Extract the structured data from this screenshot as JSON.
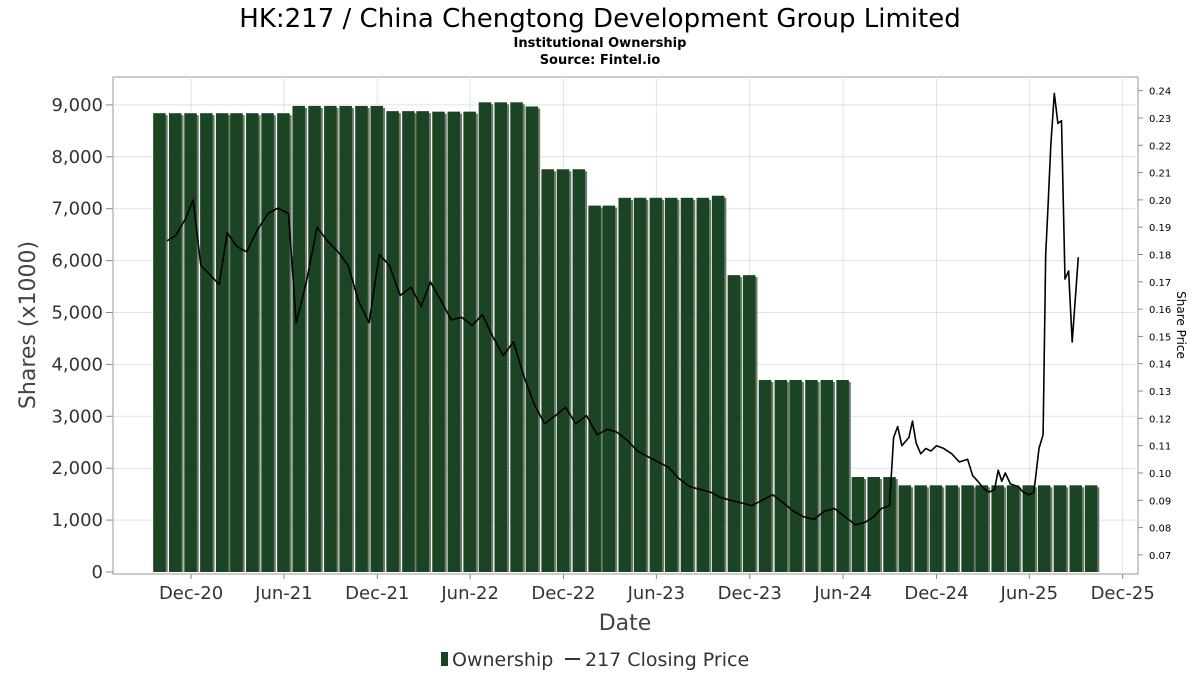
{
  "chart_data": {
    "type": "bar",
    "title": "HK:217 / China Chengtong Development Group Limited",
    "subtitle": "Institutional Ownership",
    "source": "Source: Fintel.io",
    "xlabel": "Date",
    "ylabel": "Shares (x1000)",
    "y2label": "Share Price",
    "ylim": [
      0,
      9500
    ],
    "y2lim": [
      0.063,
      0.245
    ],
    "y_ticks": [
      "0",
      "1,000",
      "2,000",
      "3,000",
      "4,000",
      "5,000",
      "6,000",
      "7,000",
      "8,000",
      "9,000"
    ],
    "y2_ticks": [
      "0.07",
      "0.08",
      "0.09",
      "0.10",
      "0.11",
      "0.12",
      "0.13",
      "0.14",
      "0.15",
      "0.16",
      "0.17",
      "0.18",
      "0.19",
      "0.20",
      "0.21",
      "0.22",
      "0.23",
      "0.24"
    ],
    "x_ticks": [
      "Dec-20",
      "Jun-21",
      "Dec-21",
      "Jun-22",
      "Dec-22",
      "Jun-23",
      "Dec-23",
      "Jun-24",
      "Dec-24",
      "Jun-25",
      "Dec-25"
    ],
    "x_range": [
      "2020-07-01",
      "2025-12-31"
    ],
    "grid": true,
    "legend_position": "bottom",
    "legend": {
      "ownership": "Ownership",
      "price": "217 Closing Price"
    },
    "series": [
      {
        "name": "Ownership",
        "color": "#1b4423",
        "shadow_color": "#6f7a6f",
        "values": [
          {
            "d": "2020-09-30",
            "v": 8840
          },
          {
            "d": "2020-10-31",
            "v": 8840
          },
          {
            "d": "2020-11-30",
            "v": 8840
          },
          {
            "d": "2020-12-31",
            "v": 8840
          },
          {
            "d": "2021-01-31",
            "v": 8840
          },
          {
            "d": "2021-02-28",
            "v": 8840
          },
          {
            "d": "2021-03-31",
            "v": 8840
          },
          {
            "d": "2021-04-30",
            "v": 8840
          },
          {
            "d": "2021-05-31",
            "v": 8840
          },
          {
            "d": "2021-06-30",
            "v": 8980
          },
          {
            "d": "2021-07-31",
            "v": 8980
          },
          {
            "d": "2021-08-31",
            "v": 8980
          },
          {
            "d": "2021-09-30",
            "v": 8980
          },
          {
            "d": "2021-10-31",
            "v": 8980
          },
          {
            "d": "2021-11-30",
            "v": 8980
          },
          {
            "d": "2021-12-31",
            "v": 8880
          },
          {
            "d": "2022-01-31",
            "v": 8880
          },
          {
            "d": "2022-02-28",
            "v": 8880
          },
          {
            "d": "2022-03-31",
            "v": 8870
          },
          {
            "d": "2022-04-30",
            "v": 8870
          },
          {
            "d": "2022-05-31",
            "v": 8870
          },
          {
            "d": "2022-06-30",
            "v": 9050
          },
          {
            "d": "2022-07-31",
            "v": 9050
          },
          {
            "d": "2022-08-31",
            "v": 9050
          },
          {
            "d": "2022-09-30",
            "v": 8970
          },
          {
            "d": "2022-10-31",
            "v": 7760
          },
          {
            "d": "2022-11-30",
            "v": 7760
          },
          {
            "d": "2022-12-31",
            "v": 7760
          },
          {
            "d": "2023-01-31",
            "v": 7060
          },
          {
            "d": "2023-02-28",
            "v": 7060
          },
          {
            "d": "2023-03-31",
            "v": 7210
          },
          {
            "d": "2023-04-30",
            "v": 7210
          },
          {
            "d": "2023-05-31",
            "v": 7210
          },
          {
            "d": "2023-06-30",
            "v": 7210
          },
          {
            "d": "2023-07-31",
            "v": 7210
          },
          {
            "d": "2023-08-31",
            "v": 7210
          },
          {
            "d": "2023-09-30",
            "v": 7250
          },
          {
            "d": "2023-10-31",
            "v": 5720
          },
          {
            "d": "2023-11-30",
            "v": 5720
          },
          {
            "d": "2023-12-31",
            "v": 3700
          },
          {
            "d": "2024-01-31",
            "v": 3700
          },
          {
            "d": "2024-02-29",
            "v": 3700
          },
          {
            "d": "2024-03-31",
            "v": 3700
          },
          {
            "d": "2024-04-30",
            "v": 3700
          },
          {
            "d": "2024-05-31",
            "v": 3700
          },
          {
            "d": "2024-06-30",
            "v": 1830
          },
          {
            "d": "2024-07-31",
            "v": 1830
          },
          {
            "d": "2024-08-31",
            "v": 1830
          },
          {
            "d": "2024-09-30",
            "v": 1670
          },
          {
            "d": "2024-10-31",
            "v": 1670
          },
          {
            "d": "2024-11-30",
            "v": 1670
          },
          {
            "d": "2024-12-31",
            "v": 1670
          },
          {
            "d": "2025-01-31",
            "v": 1670
          },
          {
            "d": "2025-02-28",
            "v": 1670
          },
          {
            "d": "2025-03-31",
            "v": 1670
          },
          {
            "d": "2025-04-30",
            "v": 1670
          },
          {
            "d": "2025-05-31",
            "v": 1670
          },
          {
            "d": "2025-06-30",
            "v": 1670
          },
          {
            "d": "2025-07-31",
            "v": 1670
          },
          {
            "d": "2025-08-31",
            "v": 1670
          },
          {
            "d": "2025-09-30",
            "v": 1670
          }
        ]
      },
      {
        "name": "217 Closing Price",
        "color": "#000000",
        "axis": "right",
        "values": [
          {
            "d": "2020-10-15",
            "v": 0.185
          },
          {
            "d": "2020-11-01",
            "v": 0.187
          },
          {
            "d": "2020-11-20",
            "v": 0.193
          },
          {
            "d": "2020-12-05",
            "v": 0.2
          },
          {
            "d": "2020-12-20",
            "v": 0.176
          },
          {
            "d": "2021-01-05",
            "v": 0.173
          },
          {
            "d": "2021-01-25",
            "v": 0.169
          },
          {
            "d": "2021-02-10",
            "v": 0.188
          },
          {
            "d": "2021-02-28",
            "v": 0.183
          },
          {
            "d": "2021-03-20",
            "v": 0.181
          },
          {
            "d": "2021-04-10",
            "v": 0.189
          },
          {
            "d": "2021-05-01",
            "v": 0.195
          },
          {
            "d": "2021-05-20",
            "v": 0.197
          },
          {
            "d": "2021-06-10",
            "v": 0.195
          },
          {
            "d": "2021-06-25",
            "v": 0.155
          },
          {
            "d": "2021-07-15",
            "v": 0.17
          },
          {
            "d": "2021-08-05",
            "v": 0.19
          },
          {
            "d": "2021-08-25",
            "v": 0.185
          },
          {
            "d": "2021-09-15",
            "v": 0.181
          },
          {
            "d": "2021-10-05",
            "v": 0.176
          },
          {
            "d": "2021-10-25",
            "v": 0.163
          },
          {
            "d": "2021-11-15",
            "v": 0.155
          },
          {
            "d": "2021-12-05",
            "v": 0.18
          },
          {
            "d": "2021-12-25",
            "v": 0.176
          },
          {
            "d": "2022-01-15",
            "v": 0.165
          },
          {
            "d": "2022-02-05",
            "v": 0.168
          },
          {
            "d": "2022-02-25",
            "v": 0.161
          },
          {
            "d": "2022-03-15",
            "v": 0.17
          },
          {
            "d": "2022-04-05",
            "v": 0.163
          },
          {
            "d": "2022-04-25",
            "v": 0.156
          },
          {
            "d": "2022-05-15",
            "v": 0.157
          },
          {
            "d": "2022-06-05",
            "v": 0.154
          },
          {
            "d": "2022-06-25",
            "v": 0.158
          },
          {
            "d": "2022-07-15",
            "v": 0.15
          },
          {
            "d": "2022-08-05",
            "v": 0.143
          },
          {
            "d": "2022-08-25",
            "v": 0.148
          },
          {
            "d": "2022-09-15",
            "v": 0.135
          },
          {
            "d": "2022-10-05",
            "v": 0.125
          },
          {
            "d": "2022-10-25",
            "v": 0.118
          },
          {
            "d": "2022-11-15",
            "v": 0.121
          },
          {
            "d": "2022-12-05",
            "v": 0.124
          },
          {
            "d": "2022-12-25",
            "v": 0.118
          },
          {
            "d": "2023-01-15",
            "v": 0.121
          },
          {
            "d": "2023-02-05",
            "v": 0.114
          },
          {
            "d": "2023-02-25",
            "v": 0.116
          },
          {
            "d": "2023-03-15",
            "v": 0.115
          },
          {
            "d": "2023-04-05",
            "v": 0.112
          },
          {
            "d": "2023-04-25",
            "v": 0.108
          },
          {
            "d": "2023-05-15",
            "v": 0.106
          },
          {
            "d": "2023-06-05",
            "v": 0.104
          },
          {
            "d": "2023-06-25",
            "v": 0.102
          },
          {
            "d": "2023-07-15",
            "v": 0.098
          },
          {
            "d": "2023-08-05",
            "v": 0.095
          },
          {
            "d": "2023-08-25",
            "v": 0.094
          },
          {
            "d": "2023-09-15",
            "v": 0.093
          },
          {
            "d": "2023-10-05",
            "v": 0.091
          },
          {
            "d": "2023-10-25",
            "v": 0.09
          },
          {
            "d": "2023-11-15",
            "v": 0.089
          },
          {
            "d": "2023-12-05",
            "v": 0.088
          },
          {
            "d": "2023-12-25",
            "v": 0.09
          },
          {
            "d": "2024-01-15",
            "v": 0.092
          },
          {
            "d": "2024-02-05",
            "v": 0.089
          },
          {
            "d": "2024-02-25",
            "v": 0.086
          },
          {
            "d": "2024-03-15",
            "v": 0.084
          },
          {
            "d": "2024-04-05",
            "v": 0.083
          },
          {
            "d": "2024-04-25",
            "v": 0.086
          },
          {
            "d": "2024-05-15",
            "v": 0.087
          },
          {
            "d": "2024-06-05",
            "v": 0.084
          },
          {
            "d": "2024-06-25",
            "v": 0.081
          },
          {
            "d": "2024-07-15",
            "v": 0.082
          },
          {
            "d": "2024-07-31",
            "v": 0.084
          },
          {
            "d": "2024-08-15",
            "v": 0.087
          },
          {
            "d": "2024-08-31",
            "v": 0.088
          },
          {
            "d": "2024-09-08",
            "v": 0.113
          },
          {
            "d": "2024-09-16",
            "v": 0.117
          },
          {
            "d": "2024-09-24",
            "v": 0.11
          },
          {
            "d": "2024-10-08",
            "v": 0.113
          },
          {
            "d": "2024-10-15",
            "v": 0.119
          },
          {
            "d": "2024-10-22",
            "v": 0.111
          },
          {
            "d": "2024-10-31",
            "v": 0.107
          },
          {
            "d": "2024-11-10",
            "v": 0.109
          },
          {
            "d": "2024-11-20",
            "v": 0.108
          },
          {
            "d": "2024-12-01",
            "v": 0.11
          },
          {
            "d": "2024-12-15",
            "v": 0.109
          },
          {
            "d": "2024-12-31",
            "v": 0.107
          },
          {
            "d": "2025-01-15",
            "v": 0.104
          },
          {
            "d": "2025-01-31",
            "v": 0.105
          },
          {
            "d": "2025-02-10",
            "v": 0.099
          },
          {
            "d": "2025-02-20",
            "v": 0.097
          },
          {
            "d": "2025-03-05",
            "v": 0.094
          },
          {
            "d": "2025-03-15",
            "v": 0.093
          },
          {
            "d": "2025-03-25",
            "v": 0.094
          },
          {
            "d": "2025-04-01",
            "v": 0.101
          },
          {
            "d": "2025-04-08",
            "v": 0.097
          },
          {
            "d": "2025-04-15",
            "v": 0.1
          },
          {
            "d": "2025-04-25",
            "v": 0.096
          },
          {
            "d": "2025-05-10",
            "v": 0.095
          },
          {
            "d": "2025-05-20",
            "v": 0.093
          },
          {
            "d": "2025-06-01",
            "v": 0.092
          },
          {
            "d": "2025-06-10",
            "v": 0.093
          },
          {
            "d": "2025-06-20",
            "v": 0.109
          },
          {
            "d": "2025-06-28",
            "v": 0.114
          },
          {
            "d": "2025-07-03",
            "v": 0.18
          },
          {
            "d": "2025-07-08",
            "v": 0.199
          },
          {
            "d": "2025-07-13",
            "v": 0.22
          },
          {
            "d": "2025-07-20",
            "v": 0.239
          },
          {
            "d": "2025-07-27",
            "v": 0.228
          },
          {
            "d": "2025-08-03",
            "v": 0.229
          },
          {
            "d": "2025-08-10",
            "v": 0.171
          },
          {
            "d": "2025-08-17",
            "v": 0.174
          },
          {
            "d": "2025-08-24",
            "v": 0.148
          },
          {
            "d": "2025-09-05",
            "v": 0.179
          }
        ]
      }
    ]
  }
}
